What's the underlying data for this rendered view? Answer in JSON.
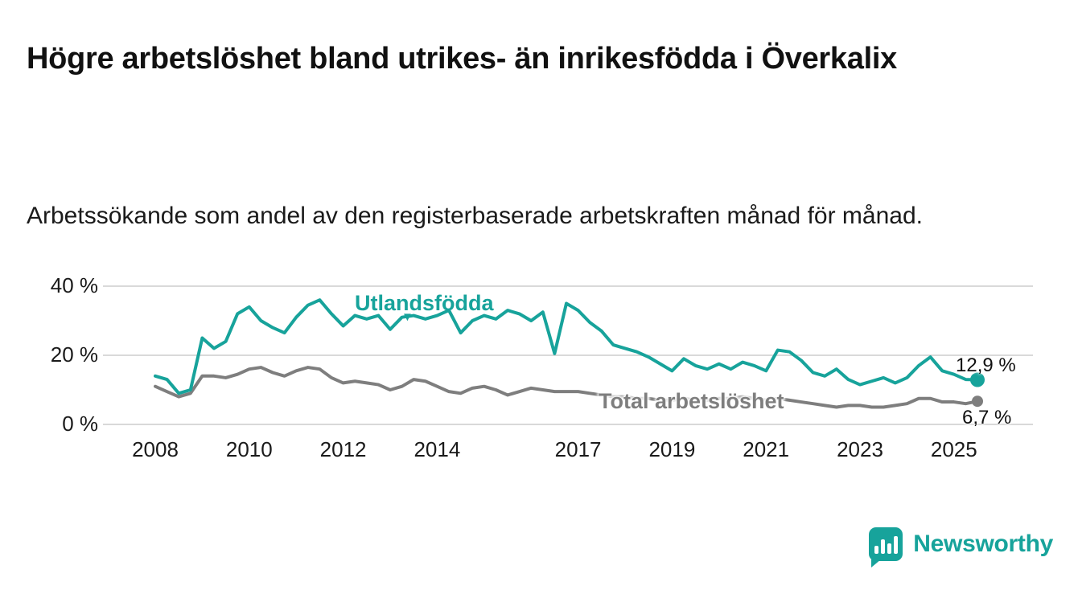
{
  "page": {
    "title": "Högre arbetslöshet bland utrikes- än inrikesfödda i Överkalix",
    "subtitle": "Arbetssökande som andel av den registerbaserade arbetskraften månad för månad."
  },
  "chart_data": {
    "type": "line",
    "title": "Högre arbetslöshet bland utrikes- än inrikesfödda i Överkalix",
    "subtitle": "Arbetssökande som andel av den registerbaserade arbetskraften månad för månad.",
    "xlabel": "",
    "ylabel": "",
    "ylim": [
      0,
      40
    ],
    "grid": "horizontal",
    "legend": "inline-labels",
    "yticks": [
      {
        "value": 0,
        "label": "0 %"
      },
      {
        "value": 20,
        "label": "20 %"
      },
      {
        "value": 40,
        "label": "40 %"
      }
    ],
    "xticks": [
      {
        "value": 2008,
        "label": "2008"
      },
      {
        "value": 2010,
        "label": "2010"
      },
      {
        "value": 2012,
        "label": "2012"
      },
      {
        "value": 2014,
        "label": "2014"
      },
      {
        "value": 2017,
        "label": "2017"
      },
      {
        "value": 2019,
        "label": "2019"
      },
      {
        "value": 2021,
        "label": "2021"
      },
      {
        "value": 2023,
        "label": "2023"
      },
      {
        "value": 2025,
        "label": "2025"
      }
    ],
    "x": [
      2008,
      2008.25,
      2008.5,
      2008.75,
      2009,
      2009.25,
      2009.5,
      2009.75,
      2010,
      2010.25,
      2010.5,
      2010.75,
      2011,
      2011.25,
      2011.5,
      2011.75,
      2012,
      2012.25,
      2012.5,
      2012.75,
      2013,
      2013.25,
      2013.5,
      2013.75,
      2014,
      2014.25,
      2014.5,
      2014.75,
      2015,
      2015.25,
      2015.5,
      2015.75,
      2016,
      2016.25,
      2016.5,
      2016.75,
      2017,
      2017.25,
      2017.5,
      2017.75,
      2018,
      2018.25,
      2018.5,
      2018.75,
      2019,
      2019.25,
      2019.5,
      2019.75,
      2020,
      2020.25,
      2020.5,
      2020.75,
      2021,
      2021.25,
      2021.5,
      2021.75,
      2022,
      2022.25,
      2022.5,
      2022.75,
      2023,
      2023.25,
      2023.5,
      2023.75,
      2024,
      2024.25,
      2024.5,
      2024.75,
      2025,
      2025.25,
      2025.5
    ],
    "series": [
      {
        "id": "utlandsfodda",
        "name": "Utlandsfödda",
        "color": "#17A39B",
        "dot_radius": 9,
        "end_label": "12,9 %",
        "end_value": 12.9,
        "values": [
          14,
          13,
          9,
          10,
          25,
          22,
          24,
          32,
          34,
          30,
          28,
          26.5,
          31,
          34.5,
          36,
          32,
          28.5,
          31.5,
          30.5,
          31.5,
          27.5,
          31,
          31.5,
          30.5,
          31.5,
          33,
          26.5,
          30,
          31.5,
          30.5,
          33,
          32,
          30,
          32.5,
          20.5,
          35,
          33,
          29.5,
          27,
          23,
          22,
          21,
          19.5,
          17.5,
          15.5,
          19,
          17,
          16,
          17.5,
          16,
          18,
          17,
          15.5,
          21.5,
          21,
          18.5,
          15,
          14,
          16,
          13,
          11.5,
          12.5,
          13.5,
          12,
          13.5,
          17,
          19.5,
          15.5,
          14.5,
          13,
          12.9
        ]
      },
      {
        "id": "total",
        "name": "Total arbetslöshet",
        "color": "#7E7E7E",
        "dot_radius": 7,
        "end_label": "6,7 %",
        "end_value": 6.7,
        "values": [
          11,
          9.5,
          8,
          9,
          14,
          14,
          13.5,
          14.5,
          16,
          16.5,
          15,
          14,
          15.5,
          16.5,
          16,
          13.5,
          12,
          12.5,
          12,
          11.5,
          10,
          11,
          13,
          12.5,
          11,
          9.5,
          9,
          10.5,
          11,
          10,
          8.5,
          9.5,
          10.5,
          10,
          9.5,
          9.5,
          9.5,
          9,
          8.5,
          8,
          8,
          7.5,
          7.5,
          7,
          7,
          7.5,
          7,
          7,
          7.5,
          7.5,
          8,
          7.5,
          7,
          7.5,
          7,
          6.5,
          6,
          5.5,
          5,
          5.5,
          5.5,
          5,
          5,
          5.5,
          6,
          7.5,
          7.5,
          6.5,
          6.5,
          6,
          6.7
        ]
      }
    ]
  },
  "footer": {
    "brand": "Newsworthy"
  },
  "colors": {
    "teal": "#17A39B",
    "gray": "#7E7E7E",
    "grid": "#D9D9D9",
    "text": "#1A1A1A"
  }
}
